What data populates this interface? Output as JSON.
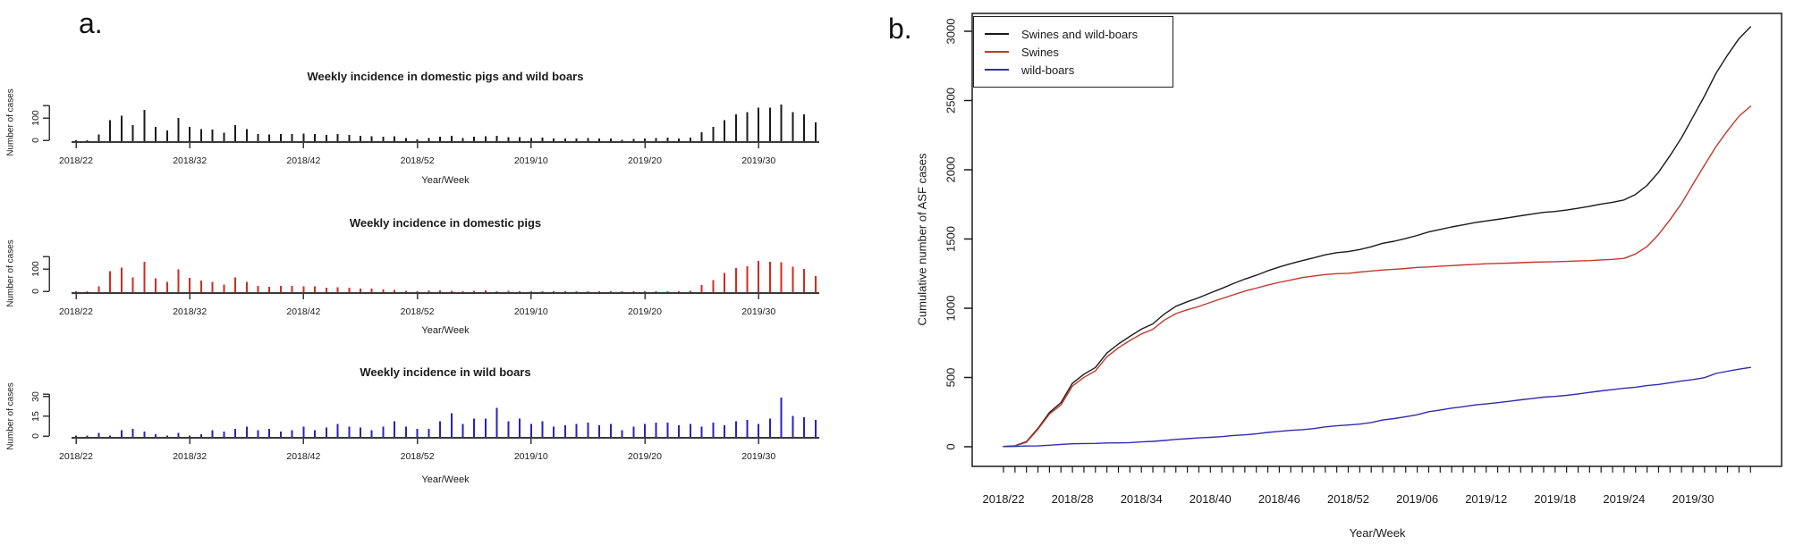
{
  "panel_a_label": "a.",
  "panel_b_label": "b.",
  "chart_data": {
    "weeks": [
      "2018/22",
      "2018/23",
      "2018/24",
      "2018/25",
      "2018/26",
      "2018/27",
      "2018/28",
      "2018/29",
      "2018/30",
      "2018/31",
      "2018/32",
      "2018/33",
      "2018/34",
      "2018/35",
      "2018/36",
      "2018/37",
      "2018/38",
      "2018/39",
      "2018/40",
      "2018/41",
      "2018/42",
      "2018/43",
      "2018/44",
      "2018/45",
      "2018/46",
      "2018/47",
      "2018/48",
      "2018/49",
      "2018/50",
      "2018/51",
      "2018/52",
      "2019/01",
      "2019/02",
      "2019/03",
      "2019/04",
      "2019/05",
      "2019/06",
      "2019/07",
      "2019/08",
      "2019/09",
      "2019/10",
      "2019/11",
      "2019/12",
      "2019/13",
      "2019/14",
      "2019/15",
      "2019/16",
      "2019/17",
      "2019/18",
      "2019/19",
      "2019/20",
      "2019/21",
      "2019/22",
      "2019/23",
      "2019/24",
      "2019/25",
      "2019/26",
      "2019/27",
      "2019/28",
      "2019/29",
      "2019/30",
      "2019/31",
      "2019/32",
      "2019/33",
      "2019/34",
      "2019/35"
    ],
    "charts": [
      {
        "id": "incidence_total",
        "type": "bar",
        "title": "Weekly incidence in domestic pigs and wild boars",
        "xlabel": "Year/Week",
        "ylabel": "Number of cases",
        "color": "#1b1b1b",
        "yticks": [
          0,
          100
        ],
        "ylim": [
          0,
          170
        ],
        "xtick_labels": [
          "2018/22",
          "2018/32",
          "2018/42",
          "2018/52",
          "2019/10",
          "2019/20",
          "2019/30"
        ],
        "values": [
          2,
          5,
          30,
          95,
          115,
          72,
          140,
          65,
          48,
          105,
          65,
          55,
          52,
          38,
          72,
          55,
          33,
          30,
          33,
          33,
          35,
          32,
          28,
          32,
          28,
          24,
          22,
          20,
          22,
          15,
          8,
          15,
          20,
          25,
          15,
          20,
          22,
          25,
          18,
          18,
          15,
          16,
          12,
          12,
          12,
          14,
          12,
          12,
          7,
          10,
          13,
          14,
          16,
          13,
          17,
          40,
          65,
          95,
          120,
          130,
          150,
          150,
          165,
          130,
          120,
          85
        ]
      },
      {
        "id": "incidence_pigs",
        "type": "bar",
        "title": "Weekly incidence in domestic pigs",
        "xlabel": "Year/Week",
        "ylabel": "Number of cases",
        "color": "#d42a20",
        "yticks": [
          0,
          100
        ],
        "ylim": [
          0,
          150
        ],
        "xtick_labels": [
          "2018/22",
          "2018/32",
          "2018/42",
          "2018/52",
          "2019/10",
          "2019/20",
          "2019/30"
        ],
        "values": [
          1,
          4,
          27,
          94,
          110,
          66,
          136,
          63,
          47,
          102,
          64,
          53,
          47,
          34,
          66,
          47,
          28,
          24,
          29,
          28,
          27,
          27,
          21,
          22,
          20,
          17,
          17,
          12,
          10,
          7,
          2,
          9,
          8,
          7,
          5,
          6,
          8,
          3,
          6,
          4,
          5,
          4,
          4,
          3,
          2,
          3,
          3,
          2,
          2,
          2,
          3,
          3,
          5,
          4,
          7,
          32,
          54,
          86,
          108,
          117,
          140,
          136,
          135,
          114,
          105,
          72
        ]
      },
      {
        "id": "incidence_boars",
        "type": "bar",
        "title": "Weekly incidence in wild boars",
        "xlabel": "Year/Week",
        "ylabel": "Number of cases",
        "color": "#2722c2",
        "yticks": [
          0,
          15,
          30
        ],
        "ylim": [
          0,
          33
        ],
        "xtick_labels": [
          "2018/22",
          "2018/32",
          "2018/42",
          "2018/52",
          "2019/10",
          "2019/20",
          "2019/30"
        ],
        "values": [
          1,
          1,
          3,
          1,
          5,
          6,
          4,
          2,
          1,
          3,
          1,
          2,
          5,
          4,
          6,
          8,
          5,
          6,
          4,
          5,
          8,
          5,
          7,
          10,
          8,
          7,
          5,
          8,
          12,
          8,
          6,
          6,
          12,
          18,
          10,
          14,
          14,
          22,
          12,
          14,
          10,
          12,
          8,
          9,
          10,
          11,
          9,
          10,
          5,
          8,
          10,
          11,
          11,
          9,
          10,
          8,
          11,
          9,
          12,
          13,
          10,
          14,
          30,
          16,
          15,
          13
        ]
      },
      {
        "id": "cumulative",
        "type": "line",
        "title": "",
        "xlabel": "Year/Week",
        "ylabel": "Cumulative number of ASF cases",
        "yticks": [
          0,
          500,
          1000,
          1500,
          2000,
          2500,
          3000
        ],
        "ylim": [
          0,
          3000
        ],
        "xtick_labels": [
          "2018/22",
          "2018/28",
          "2018/34",
          "2018/40",
          "2018/46",
          "2018/52",
          "2019/06",
          "2019/12",
          "2019/18",
          "2019/24",
          "2019/30"
        ],
        "legend_position": "top-left",
        "series": [
          {
            "name": "Swines and wild-boars",
            "color": "#1b1b1b",
            "values": [
              2,
              7,
              37,
              132,
              247,
              319,
              459,
              524,
              572,
              677,
              742,
              797,
              849,
              887,
              959,
              1014,
              1047,
              1077,
              1110,
              1143,
              1178,
              1210,
              1238,
              1270,
              1298,
              1322,
              1344,
              1364,
              1386,
              1401,
              1409,
              1424,
              1444,
              1469,
              1484,
              1504,
              1526,
              1551,
              1569,
              1587,
              1602,
              1618,
              1630,
              1642,
              1654,
              1668,
              1680,
              1692,
              1699,
              1709,
              1722,
              1736,
              1752,
              1765,
              1782,
              1822,
              1887,
              1982,
              2102,
              2232,
              2382,
              2532,
              2697,
              2827,
              2947,
              3032
            ]
          },
          {
            "name": "Swines",
            "color": "#c0392b",
            "values": [
              1,
              5,
              32,
              126,
              236,
              302,
              438,
              501,
              548,
              650,
              714,
              767,
              814,
              848,
              914,
              961,
              989,
              1013,
              1042,
              1070,
              1097,
              1124,
              1145,
              1167,
              1187,
              1204,
              1221,
              1233,
              1243,
              1250,
              1252,
              1261,
              1269,
              1276,
              1281,
              1287,
              1295,
              1298,
              1304,
              1308,
              1313,
              1317,
              1321,
              1324,
              1326,
              1329,
              1332,
              1334,
              1336,
              1338,
              1341,
              1344,
              1349,
              1353,
              1360,
              1392,
              1446,
              1532,
              1640,
              1757,
              1897,
              2033,
              2168,
              2282,
              2387,
              2459
            ]
          },
          {
            "name": "wild-boars",
            "color": "#322bb5",
            "values": [
              1,
              2,
              5,
              6,
              11,
              17,
              21,
              23,
              24,
              27,
              28,
              30,
              35,
              39,
              45,
              53,
              58,
              64,
              68,
              73,
              81,
              86,
              93,
              103,
              111,
              118,
              123,
              131,
              143,
              151,
              157,
              163,
              175,
              193,
              203,
              217,
              231,
              253,
              265,
              279,
              289,
              301,
              309,
              318,
              328,
              339,
              348,
              358,
              363,
              371,
              381,
              392,
              403,
              412,
              422,
              430,
              441,
              450,
              462,
              475,
              485,
              499,
              529,
              545,
              560,
              573
            ]
          }
        ]
      }
    ]
  }
}
